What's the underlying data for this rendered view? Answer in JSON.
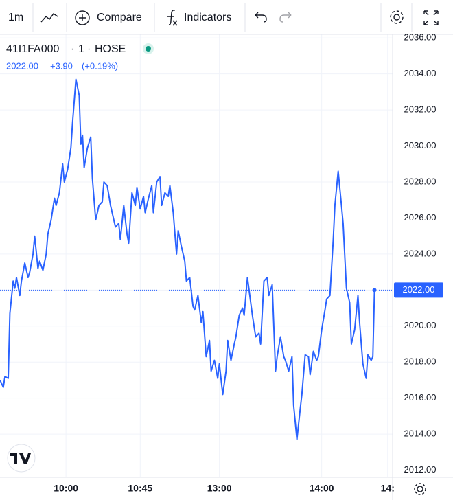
{
  "toolbar": {
    "interval": "1m",
    "compare": "Compare",
    "indicators": "Indicators"
  },
  "chart_data": {
    "type": "line",
    "legend": {
      "symbol": "41I1FA000",
      "interval": "1",
      "exchange": "HOSE",
      "last": "2022.00",
      "change": "+3.90",
      "change_percent": "(+0.19%)"
    },
    "series": [
      {
        "color": "#2962ff",
        "x": [
          0,
          2,
          3,
          5,
          6,
          8,
          9,
          10,
          12,
          13,
          15,
          17,
          18,
          20,
          21,
          23,
          24,
          26,
          28,
          29,
          31,
          33,
          34,
          36,
          38,
          39,
          41,
          43,
          44,
          46,
          48,
          49,
          50,
          51,
          53,
          55,
          56,
          58,
          60,
          62,
          63,
          65,
          67,
          68,
          70,
          72,
          73,
          75,
          77,
          78,
          80,
          82,
          83,
          85,
          87,
          88,
          90,
          92,
          93,
          95,
          97,
          98,
          100,
          102,
          103,
          105,
          107,
          108,
          110,
          112,
          113,
          115,
          117,
          118,
          120,
          122,
          123,
          125,
          127,
          128,
          130,
          132,
          133,
          135,
          137,
          138,
          140,
          142,
          143,
          145,
          147,
          148,
          150,
          152,
          153,
          155,
          157,
          158,
          160,
          162,
          163,
          165,
          167,
          168,
          170,
          172,
          173,
          175,
          177,
          178,
          180,
          182,
          183,
          185,
          187,
          188,
          190,
          192,
          193,
          195,
          197,
          198,
          200,
          202,
          203,
          205,
          207,
          208,
          210,
          212,
          213,
          215,
          217,
          218,
          220,
          222,
          223,
          225,
          226,
          227
        ],
        "values": [
          2017.0,
          2016.6,
          2017.2,
          2017.1,
          2020.7,
          2022.5,
          2022.1,
          2022.7,
          2021.7,
          2022.5,
          2023.5,
          2022.7,
          2023.0,
          2024.0,
          2025.0,
          2023.2,
          2023.6,
          2023.1,
          2024.0,
          2025.1,
          2025.9,
          2027.1,
          2026.7,
          2027.4,
          2029.0,
          2028.0,
          2028.7,
          2029.9,
          2031.3,
          2033.7,
          2032.8,
          2030.1,
          2030.6,
          2028.8,
          2029.9,
          2030.5,
          2028.2,
          2025.9,
          2026.7,
          2026.9,
          2028.0,
          2027.8,
          2026.7,
          2026.3,
          2025.5,
          2025.7,
          2024.8,
          2026.7,
          2025.1,
          2024.6,
          2027.4,
          2026.7,
          2027.7,
          2026.5,
          2027.2,
          2026.3,
          2027.1,
          2027.8,
          2026.3,
          2028.0,
          2028.3,
          2026.7,
          2027.4,
          2027.2,
          2027.8,
          2026.3,
          2024.0,
          2025.3,
          2024.4,
          2023.6,
          2022.5,
          2022.7,
          2021.1,
          2020.9,
          2021.7,
          2020.2,
          2020.8,
          2018.3,
          2019.2,
          2017.5,
          2018.1,
          2017.1,
          2017.9,
          2016.2,
          2017.5,
          2019.2,
          2018.1,
          2019.0,
          2019.4,
          2020.6,
          2021.0,
          2020.6,
          2022.7,
          2021.3,
          2020.6,
          2019.4,
          2019.6,
          2019.0,
          2022.5,
          2022.7,
          2021.7,
          2022.3,
          2017.5,
          2018.3,
          2019.4,
          2018.3,
          2018.1,
          2017.5,
          2018.3,
          2015.6,
          2013.7,
          2015.4,
          2016.2,
          2018.4,
          2018.3,
          2017.3,
          2018.6,
          2018.1,
          2018.3,
          2019.8,
          2020.9,
          2021.5,
          2021.7,
          2024.8,
          2026.7,
          2028.6,
          2026.7,
          2025.7,
          2022.1,
          2021.3,
          2019.0,
          2019.8,
          2021.7,
          2020.2,
          2017.9,
          2017.1,
          2018.4,
          2018.1,
          2018.3,
          2022.0
        ]
      }
    ],
    "xlim": [
      0,
      238
    ],
    "xticks": [
      {
        "value": 40,
        "label": "10:00"
      },
      {
        "value": 85,
        "label": "10:45"
      },
      {
        "value": 133,
        "label": "13:00"
      },
      {
        "value": 195,
        "label": "14:00"
      },
      {
        "value": 235,
        "label": "14:"
      }
    ],
    "ylim": [
      2011.6,
      2036.2
    ],
    "yticks": [
      {
        "value": 2012,
        "label": "2012.00"
      },
      {
        "value": 2014,
        "label": "2014.00"
      },
      {
        "value": 2016,
        "label": "2016.00"
      },
      {
        "value": 2018,
        "label": "2018.00"
      },
      {
        "value": 2020,
        "label": "2020.00"
      },
      {
        "value": 2022,
        "label": "2022.00"
      },
      {
        "value": 2024,
        "label": "2024.00"
      },
      {
        "value": 2026,
        "label": "2026.00"
      },
      {
        "value": 2028,
        "label": "2028.00"
      },
      {
        "value": 2030,
        "label": "2030.00"
      },
      {
        "value": 2032,
        "label": "2032.00"
      },
      {
        "value": 2034,
        "label": "2034.00"
      },
      {
        "value": 2036,
        "label": "2036.00"
      }
    ],
    "grid": true
  }
}
